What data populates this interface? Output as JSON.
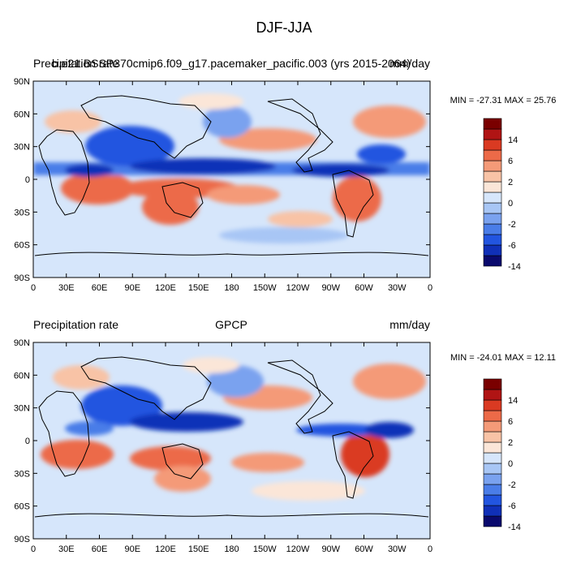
{
  "chart_data": {
    "type": "heatmap",
    "title": "DJF-JJA",
    "colorbar": {
      "colors": [
        "#0a0a6e",
        "#1030b8",
        "#2255e0",
        "#4a7de8",
        "#7aa2ef",
        "#a8c6f5",
        "#d6e6fb",
        "#fbe6d8",
        "#f8c3a6",
        "#f49a78",
        "#ec6a48",
        "#da3a22",
        "#b01414",
        "#7a0000"
      ],
      "labels": [
        "14",
        "6",
        "2",
        "0",
        "-2",
        "-6",
        "-14"
      ]
    },
    "x_ticks": [
      "0",
      "30E",
      "60E",
      "90E",
      "120E",
      "150E",
      "180",
      "150W",
      "120W",
      "90W",
      "60W",
      "30W",
      "0"
    ],
    "y_ticks": [
      "90N",
      "60N",
      "30N",
      "0",
      "30S",
      "60S",
      "90S"
    ],
    "panels": [
      {
        "left_title": "Precipitation rate",
        "center_title": "b.e21.BSSP370cmip6.f09_g17.pacemaker_pacific.003 (yrs 2015-2064)",
        "right_title": "mm/day",
        "min_max": "MIN = -27.31 MAX =  25.76",
        "min": -27.31,
        "max": 25.76
      },
      {
        "left_title": "Precipitation rate",
        "center_title": "GPCP",
        "right_title": "mm/day",
        "min_max": "MIN = -24.01 MAX =  12.11",
        "min": -24.01,
        "max": 12.11
      }
    ]
  }
}
